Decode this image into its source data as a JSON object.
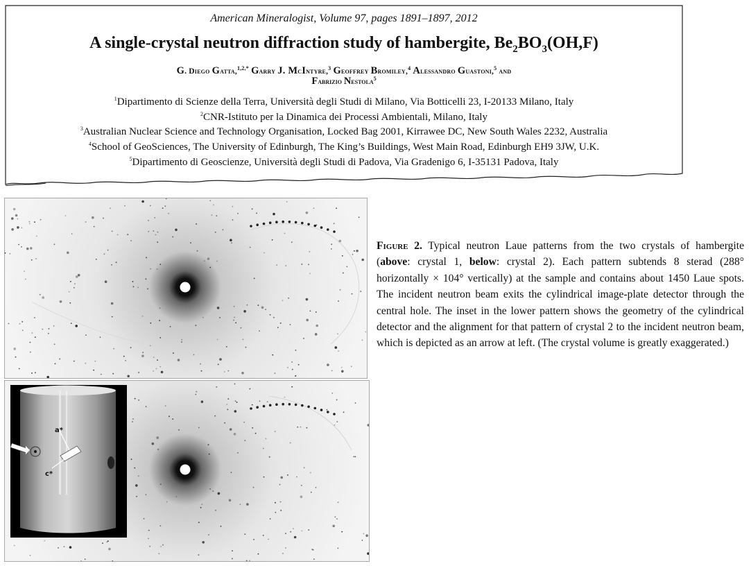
{
  "header": {
    "journal": "American Mineralogist, Volume 97, pages 1891–1897, 2012",
    "title_main": "A single-crystal neutron diffraction study of hambergite, Be",
    "title_sub_1": "2",
    "title_mid": "BO",
    "title_sub_2": "3",
    "title_end": "(OH,F)",
    "authors": [
      {
        "initial": "G",
        "rest": ". Diego ",
        "initial2": "G",
        "rest2": "atta,",
        "sup": "1,2,*"
      },
      {
        "initial": "G",
        "rest": "arry ",
        "initial2": "J. M",
        "rest2": "c",
        "initial3": "I",
        "rest3": "ntyre,",
        "sup": "3"
      },
      {
        "initial": "G",
        "rest": "eoffrey ",
        "initial2": "B",
        "rest2": "romiley,",
        "sup": "4"
      },
      {
        "initial": "A",
        "rest": "lessandro ",
        "initial2": "G",
        "rest2": "uastoni,",
        "sup": "5"
      },
      {
        "and": "and"
      },
      {
        "initial": "F",
        "rest": "abrizio ",
        "initial2": "N",
        "rest2": "estola",
        "sup": "5"
      }
    ],
    "affiliations": [
      {
        "sup": "1",
        "text": "Dipartimento di Scienze della Terra, Università degli Studi di Milano, Via Botticelli 23, I-20133 Milano, Italy"
      },
      {
        "sup": "2",
        "text": "CNR-Istituto per la Dinamica dei Processi Ambientali, Milano, Italy"
      },
      {
        "sup": "3",
        "text": "Australian Nuclear Science and Technology Organisation, Locked Bag 2001, Kirrawee DC, New South Wales 2232, Australia"
      },
      {
        "sup": "4",
        "text": "School of GeoSciences, The University of Edinburgh, The King’s Buildings, West Main Road, Edinburgh EH9 3JW, U.K."
      },
      {
        "sup": "5",
        "text": "Dipartimento di Geoscienze, Università degli Studi di Padova, Via Gradenigo 6, I-35131 Padova, Italy"
      }
    ]
  },
  "figure": {
    "inset_labels": {
      "a": "a*",
      "c": "c*"
    },
    "caption": {
      "label": "Figure 2.",
      "t1": " Typical neutron Laue patterns from the two crystals of hambergite (",
      "above": "above",
      "t2": ": crystal 1, ",
      "below": "below",
      "t3": ": crystal 2). Each pattern subtends 8 sterad (288° horizontally × 104° vertically) at the sample and contains about 1450 Laue spots. The incident neutron beam exits the cylindrical image-plate detector through the central hole. The inset in the lower pattern shows the geometry of the cylindrical detector and the alignment for that pattern of crystal 2 to the incident neutron beam, which is depicted as an arrow at left. (The crystal volume is greatly exaggerated.)"
    }
  }
}
